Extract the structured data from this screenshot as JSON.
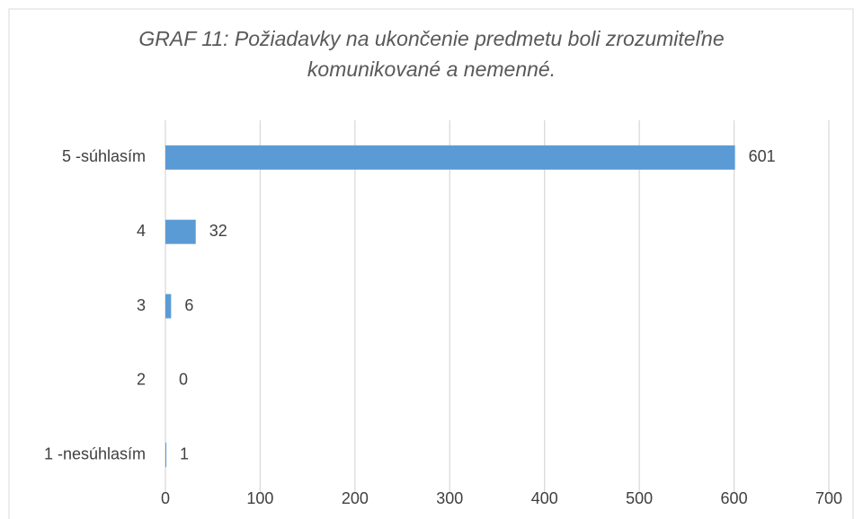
{
  "chart_data": {
    "type": "bar",
    "orientation": "horizontal",
    "title": "GRAF 11: Požiadavky na ukončenie predmetu boli zrozumiteľne komunikované a nemenné.",
    "categories": [
      "5 -súhlasím",
      "4",
      "3",
      "2",
      "1 -nesúhlasím"
    ],
    "values": [
      601,
      32,
      6,
      0,
      1
    ],
    "color": "#5b9bd5",
    "xlim": [
      0,
      700
    ],
    "xticks": [
      0,
      100,
      200,
      300,
      400,
      500,
      600,
      700
    ],
    "grid": true
  }
}
